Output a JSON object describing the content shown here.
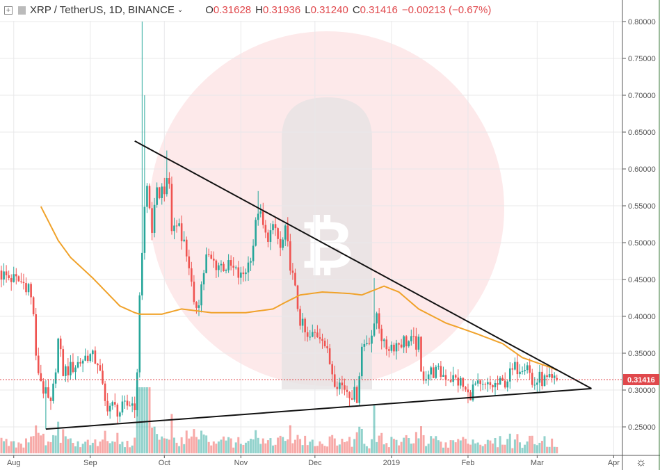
{
  "header": {
    "symbol": "XRP / TetherUS, 1D, BINANCE",
    "open_label": "O",
    "open": "0.31628",
    "high_label": "H",
    "high": "0.31936",
    "low_label": "L",
    "low": "0.31240",
    "close_label": "C",
    "close": "0.31416",
    "change": "−0.00213 (−0.67%)"
  },
  "colors": {
    "up": "#26a69a",
    "down": "#ef5350",
    "ma": "#f0a22a",
    "watermark": "#fde9ea",
    "price_line": "#e0484c"
  },
  "chart_data": {
    "type": "candlestick",
    "start_date": "2018-07-27",
    "price_ticks": [
      "0.25000",
      "0.30000",
      "0.35000",
      "0.40000",
      "0.45000",
      "0.50000",
      "0.55000",
      "0.60000",
      "0.65000",
      "0.70000",
      "0.75000",
      "0.80000"
    ],
    "ylim": [
      0.2,
      0.8
    ],
    "time_ticks": [
      {
        "label": "Aug",
        "day": 5
      },
      {
        "label": "Sep",
        "day": 36
      },
      {
        "label": "Oct",
        "day": 66
      },
      {
        "label": "Nov",
        "day": 97
      },
      {
        "label": "Dec",
        "day": 127
      },
      {
        "label": "2019",
        "day": 158
      },
      {
        "label": "Feb",
        "day": 189
      },
      {
        "label": "Mar",
        "day": 217
      },
      {
        "label": "Apr",
        "day": 248
      }
    ],
    "close_keypoints": [
      [
        0,
        0.457
      ],
      [
        11,
        0.442
      ],
      [
        13,
        0.405
      ],
      [
        14,
        0.339
      ],
      [
        17,
        0.301
      ],
      [
        20,
        0.277
      ],
      [
        21,
        0.301
      ],
      [
        23,
        0.367
      ],
      [
        25,
        0.325
      ],
      [
        28,
        0.329
      ],
      [
        32,
        0.339
      ],
      [
        35,
        0.348
      ],
      [
        39,
        0.339
      ],
      [
        42,
        0.282
      ],
      [
        45,
        0.277
      ],
      [
        48,
        0.271
      ],
      [
        52,
        0.282
      ],
      [
        54,
        0.282
      ],
      [
        55,
        0.315
      ],
      [
        56,
        0.433
      ],
      [
        58,
        0.546
      ],
      [
        59,
        0.575
      ],
      [
        61,
        0.518
      ],
      [
        63,
        0.565
      ],
      [
        66,
        0.575
      ],
      [
        68,
        0.579
      ],
      [
        69,
        0.518
      ],
      [
        72,
        0.527
      ],
      [
        74,
        0.499
      ],
      [
        76,
        0.471
      ],
      [
        78,
        0.409
      ],
      [
        80,
        0.424
      ],
      [
        83,
        0.48
      ],
      [
        87,
        0.471
      ],
      [
        93,
        0.466
      ],
      [
        97,
        0.452
      ],
      [
        100,
        0.471
      ],
      [
        102,
        0.499
      ],
      [
        104,
        0.546
      ],
      [
        107,
        0.508
      ],
      [
        111,
        0.518
      ],
      [
        113,
        0.49
      ],
      [
        115,
        0.513
      ],
      [
        118,
        0.452
      ],
      [
        121,
        0.395
      ],
      [
        124,
        0.367
      ],
      [
        127,
        0.376
      ],
      [
        130,
        0.376
      ],
      [
        132,
        0.348
      ],
      [
        135,
        0.315
      ],
      [
        138,
        0.306
      ],
      [
        142,
        0.296
      ],
      [
        144,
        0.292
      ],
      [
        146,
        0.358
      ],
      [
        151,
        0.381
      ],
      [
        152,
        0.405
      ],
      [
        155,
        0.358
      ],
      [
        159,
        0.362
      ],
      [
        163,
        0.367
      ],
      [
        169,
        0.362
      ],
      [
        170,
        0.32
      ],
      [
        175,
        0.325
      ],
      [
        180,
        0.32
      ],
      [
        186,
        0.31
      ],
      [
        189,
        0.292
      ],
      [
        192,
        0.306
      ],
      [
        194,
        0.301
      ],
      [
        199,
        0.306
      ],
      [
        203,
        0.308
      ],
      [
        208,
        0.329
      ],
      [
        213,
        0.339
      ],
      [
        215,
        0.306
      ],
      [
        218,
        0.315
      ],
      [
        223,
        0.31
      ],
      [
        225,
        0.31416
      ]
    ],
    "wick_extremes": [
      {
        "day": 57,
        "high": 0.8
      },
      {
        "day": 58,
        "high": 0.7
      },
      {
        "day": 67,
        "high": 0.625
      },
      {
        "day": 104,
        "high": 0.57
      },
      {
        "day": 151,
        "high": 0.452
      },
      {
        "day": 18,
        "low": 0.247
      },
      {
        "day": 144,
        "low": 0.282
      },
      {
        "day": 189,
        "low": 0.282
      }
    ],
    "moving_average": {
      "keypoints": [
        [
          16,
          0.549
        ],
        [
          23,
          0.503
        ],
        [
          28,
          0.48
        ],
        [
          37,
          0.452
        ],
        [
          48,
          0.414
        ],
        [
          54,
          0.405
        ],
        [
          56,
          0.403
        ],
        [
          65,
          0.403
        ],
        [
          73,
          0.41
        ],
        [
          85,
          0.405
        ],
        [
          99,
          0.405
        ],
        [
          110,
          0.41
        ],
        [
          115,
          0.419
        ],
        [
          121,
          0.429
        ],
        [
          130,
          0.433
        ],
        [
          141,
          0.431
        ],
        [
          146,
          0.429
        ],
        [
          155,
          0.441
        ],
        [
          161,
          0.433
        ],
        [
          169,
          0.41
        ],
        [
          180,
          0.391
        ],
        [
          192,
          0.377
        ],
        [
          203,
          0.363
        ],
        [
          211,
          0.344
        ],
        [
          223,
          0.33
        ],
        [
          225,
          0.327
        ]
      ]
    },
    "trendlines": [
      {
        "name": "upper",
        "from": [
          54,
          0.638
        ],
        "to": [
          239,
          0.302
        ]
      },
      {
        "name": "lower",
        "from": [
          18,
          0.247
        ],
        "to": [
          239,
          0.302
        ]
      }
    ],
    "last_price": 0.31416,
    "last_price_label": "0.31416"
  }
}
